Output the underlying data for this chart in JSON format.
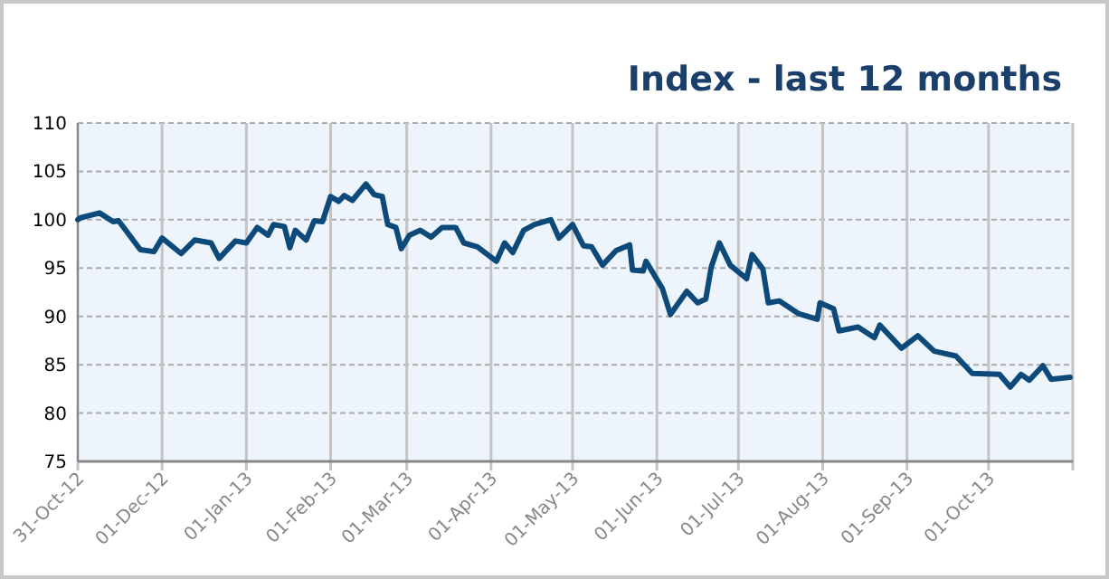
{
  "chart_data": {
    "type": "line",
    "title": "Index - last 12 months",
    "x": [
      "2012-10-31",
      "2012-11-01",
      "2012-11-08",
      "2012-11-13",
      "2012-11-15",
      "2012-11-23",
      "2012-11-28",
      "2012-12-01",
      "2012-12-08",
      "2012-12-13",
      "2012-12-19",
      "2012-12-22",
      "2012-12-28",
      "2013-01-01",
      "2013-01-05",
      "2013-01-09",
      "2013-01-11",
      "2013-01-15",
      "2013-01-17",
      "2013-01-19",
      "2013-01-23",
      "2013-01-26",
      "2013-01-29",
      "2013-02-01",
      "2013-02-04",
      "2013-02-06",
      "2013-02-09",
      "2013-02-14",
      "2013-02-17",
      "2013-02-20",
      "2013-02-22",
      "2013-02-25",
      "2013-02-27",
      "2013-03-02",
      "2013-03-06",
      "2013-03-10",
      "2013-03-14",
      "2013-03-19",
      "2013-03-22",
      "2013-03-27",
      "2013-04-03",
      "2013-04-06",
      "2013-04-09",
      "2013-04-13",
      "2013-04-17",
      "2013-04-23",
      "2013-04-26",
      "2013-05-01",
      "2013-05-05",
      "2013-05-08",
      "2013-05-12",
      "2013-05-17",
      "2013-05-22",
      "2013-05-23",
      "2013-05-27",
      "2013-05-28",
      "2013-06-03",
      "2013-06-06",
      "2013-06-12",
      "2013-06-16",
      "2013-06-19",
      "2013-06-21",
      "2013-06-24",
      "2013-06-28",
      "2013-07-04",
      "2013-07-06",
      "2013-07-10",
      "2013-07-12",
      "2013-07-16",
      "2013-07-23",
      "2013-07-30",
      "2013-07-31",
      "2013-08-05",
      "2013-08-07",
      "2013-08-14",
      "2013-08-20",
      "2013-08-22",
      "2013-08-30",
      "2013-09-05",
      "2013-09-11",
      "2013-09-19",
      "2013-09-25",
      "2013-10-05",
      "2013-10-09",
      "2013-10-13",
      "2013-10-16",
      "2013-10-21",
      "2013-10-24",
      "2013-10-31"
    ],
    "series": [
      {
        "color": "#0d4a7a",
        "values": [
          100,
          100.2,
          100.7,
          99.8,
          99.9,
          96.9,
          96.7,
          98.1,
          96.5,
          97.9,
          97.6,
          96.0,
          97.8,
          97.6,
          99.2,
          98.4,
          99.5,
          99.3,
          97.1,
          98.9,
          97.9,
          99.9,
          99.8,
          102.4,
          101.9,
          102.5,
          102.0,
          103.7,
          102.6,
          102.4,
          99.5,
          99.2,
          97.0,
          98.4,
          98.9,
          98.2,
          99.2,
          99.2,
          97.6,
          97.2,
          95.7,
          97.6,
          96.6,
          98.9,
          99.5,
          100,
          98.1,
          99.5,
          97.3,
          97.2,
          95.3,
          96.8,
          97.4,
          94.8,
          94.7,
          95.7,
          92.9,
          90.2,
          92.6,
          91.4,
          91.8,
          95.1,
          97.6,
          95.3,
          93.9,
          96.4,
          94.9,
          91.4,
          91.6,
          90.3,
          89.7,
          91.4,
          90.8,
          88.5,
          88.9,
          87.8,
          89.1,
          86.7,
          88.0,
          86.4,
          85.9,
          84.1,
          84.0,
          82.7,
          84.0,
          83.4,
          84.9,
          83.5,
          83.7
        ]
      }
    ],
    "xlim": [
      "2012-10-31",
      "2013-11-01"
    ],
    "xticks": [
      {
        "value": "2012-10-31",
        "label": "31-Oct-12"
      },
      {
        "value": "2012-12-01",
        "label": "01-Dec-12"
      },
      {
        "value": "2013-01-01",
        "label": "01-Jan-13"
      },
      {
        "value": "2013-02-01",
        "label": "01-Feb-13"
      },
      {
        "value": "2013-03-01",
        "label": "01-Mar-13"
      },
      {
        "value": "2013-04-01",
        "label": "01-Apr-13"
      },
      {
        "value": "2013-05-01",
        "label": "01-May-13"
      },
      {
        "value": "2013-06-01",
        "label": "01-Jun-13"
      },
      {
        "value": "2013-07-01",
        "label": "01-Jul-13"
      },
      {
        "value": "2013-08-01",
        "label": "01-Aug-13"
      },
      {
        "value": "2013-09-01",
        "label": "01-Sep-13"
      },
      {
        "value": "2013-10-01",
        "label": "01-Oct-13"
      },
      {
        "value": "2013-11-01",
        "label": null
      }
    ],
    "ylim": [
      75,
      110
    ],
    "yticks": [
      75,
      80,
      85,
      90,
      95,
      100,
      105,
      110
    ],
    "grid": true,
    "marker": "none",
    "line_style": "solid"
  }
}
